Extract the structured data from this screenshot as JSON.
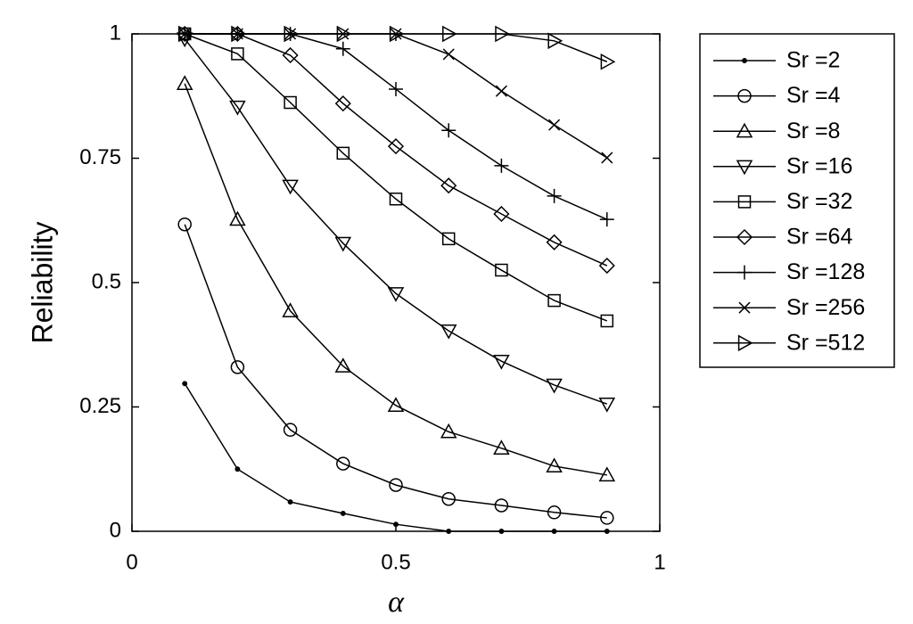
{
  "chart_data": {
    "type": "line",
    "xlabel": "α",
    "ylabel": "Reliability",
    "x": [
      0.1,
      0.2,
      0.3,
      0.4,
      0.5,
      0.6,
      0.7,
      0.8,
      0.9
    ],
    "xlim": [
      0,
      1
    ],
    "xticks": [
      0,
      0.5,
      1
    ],
    "ylim": [
      0,
      1
    ],
    "yticks": [
      0,
      0.25,
      0.5,
      0.75,
      1
    ],
    "legend": "outside-right",
    "series": [
      {
        "name": "Sr =2",
        "color": "#000000",
        "marker": "point",
        "values": [
          0.297,
          0.125,
          0.059,
          0.036,
          0.014,
          0,
          0,
          0,
          0
        ]
      },
      {
        "name": "Sr =4",
        "color": "#000000",
        "marker": "circle",
        "values": [
          0.617,
          0.33,
          0.204,
          0.136,
          0.093,
          0.065,
          0.052,
          0.038,
          0.027
        ]
      },
      {
        "name": "Sr =8",
        "color": "#000000",
        "marker": "triangle-up",
        "values": [
          0.9,
          0.627,
          0.443,
          0.332,
          0.253,
          0.2,
          0.167,
          0.131,
          0.113
        ]
      },
      {
        "name": "Sr =16",
        "color": "#000000",
        "marker": "triangle-down",
        "values": [
          0.99,
          0.853,
          0.694,
          0.579,
          0.478,
          0.403,
          0.342,
          0.294,
          0.256
        ]
      },
      {
        "name": "Sr =32",
        "color": "#000000",
        "marker": "square",
        "values": [
          1,
          0.96,
          0.862,
          0.76,
          0.668,
          0.588,
          0.525,
          0.464,
          0.423
        ]
      },
      {
        "name": "Sr =64",
        "color": "#000000",
        "marker": "diamond",
        "values": [
          1,
          1,
          0.957,
          0.86,
          0.774,
          0.695,
          0.638,
          0.581,
          0.534
        ]
      },
      {
        "name": "Sr =128",
        "color": "#000000",
        "marker": "plus",
        "values": [
          1,
          1,
          1,
          0.97,
          0.889,
          0.806,
          0.735,
          0.674,
          0.627
        ]
      },
      {
        "name": "Sr =256",
        "color": "#000000",
        "marker": "x",
        "values": [
          1,
          1,
          1,
          1,
          1,
          0.959,
          0.885,
          0.817,
          0.751
        ]
      },
      {
        "name": "Sr =512",
        "color": "#000000",
        "marker": "triangle-right",
        "values": [
          1,
          1,
          1,
          1,
          1,
          1,
          1,
          0.986,
          0.944
        ]
      }
    ]
  }
}
